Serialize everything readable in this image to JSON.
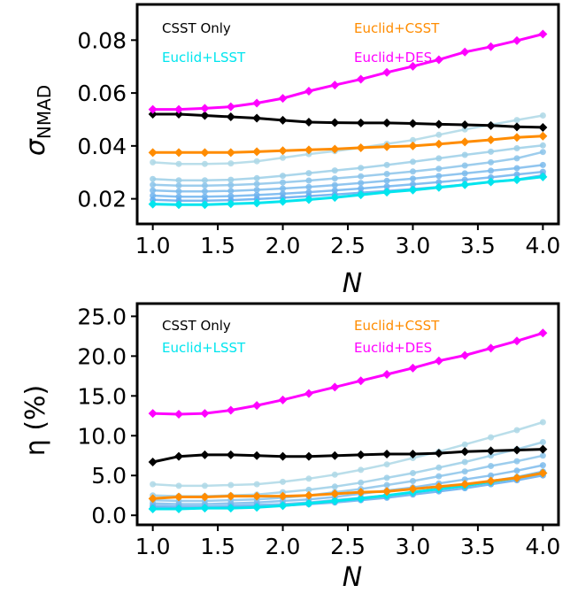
{
  "chart_data": [
    {
      "type": "line",
      "ylabel_symbol": "σ",
      "ylabel_sub": "NMAD",
      "xlabel": "N",
      "xlim": [
        0.88,
        4.12
      ],
      "ylim": [
        0.0105,
        0.0935
      ],
      "xticks": [
        "1.0",
        "1.5",
        "2.0",
        "2.5",
        "3.0",
        "3.5",
        "4.0"
      ],
      "xtick_values": [
        1.0,
        1.5,
        2.0,
        2.5,
        3.0,
        3.5,
        4.0
      ],
      "yticks": [
        "0.02",
        "0.04",
        "0.06",
        "0.08"
      ],
      "ytick_values": [
        0.02,
        0.04,
        0.06,
        0.08
      ],
      "legend_position": "top",
      "x": [
        1.0,
        1.2,
        1.4,
        1.6,
        1.8,
        2.0,
        2.2,
        2.4,
        2.6,
        2.8,
        3.0,
        3.2,
        3.4,
        3.6,
        3.8,
        4.0
      ],
      "series": [
        {
          "name": "CSST Only",
          "color": "#000000",
          "values": [
            0.052,
            0.052,
            0.0515,
            0.051,
            0.0505,
            0.0497,
            0.049,
            0.0488,
            0.0487,
            0.0487,
            0.0485,
            0.0482,
            0.048,
            0.0477,
            0.0472,
            0.047
          ]
        },
        {
          "name": "Euclid+CSST",
          "color": "#ff8c00",
          "values": [
            0.0375,
            0.0375,
            0.0375,
            0.0375,
            0.0378,
            0.0382,
            0.0385,
            0.0388,
            0.0393,
            0.0397,
            0.04,
            0.0407,
            0.0415,
            0.0423,
            0.0432,
            0.0437
          ]
        },
        {
          "name": "Euclid+LSST",
          "color": "#00e5ee",
          "values": [
            0.018,
            0.0178,
            0.0178,
            0.0181,
            0.0184,
            0.019,
            0.0197,
            0.0205,
            0.0215,
            0.0225,
            0.0233,
            0.0243,
            0.0253,
            0.0264,
            0.0272,
            0.0283
          ]
        },
        {
          "name": "Euclid+DES",
          "color": "#ff00ff",
          "values": [
            0.0538,
            0.0538,
            0.0542,
            0.0548,
            0.0562,
            0.058,
            0.0607,
            0.063,
            0.0652,
            0.0678,
            0.0701,
            0.0726,
            0.0755,
            0.0775,
            0.0798,
            0.0823
          ]
        }
      ],
      "faint_series": [
        {
          "color": "#aed8e6",
          "values": [
            0.0338,
            0.0332,
            0.0332,
            0.0334,
            0.0342,
            0.0355,
            0.0369,
            0.038,
            0.0393,
            0.0408,
            0.0422,
            0.0442,
            0.0462,
            0.048,
            0.0498,
            0.0515
          ]
        },
        {
          "color": "#9ccfe8",
          "values": [
            0.0275,
            0.027,
            0.027,
            0.0272,
            0.0278,
            0.0287,
            0.0297,
            0.0307,
            0.0317,
            0.0328,
            0.034,
            0.0353,
            0.0366,
            0.0378,
            0.0391,
            0.0402
          ]
        },
        {
          "color": "#8cc4ea",
          "values": [
            0.0253,
            0.025,
            0.025,
            0.0252,
            0.0256,
            0.0262,
            0.0269,
            0.0277,
            0.0285,
            0.0294,
            0.0303,
            0.0314,
            0.0326,
            0.0338,
            0.0353,
            0.0377
          ]
        },
        {
          "color": "#7dbbec",
          "values": [
            0.0232,
            0.0228,
            0.0228,
            0.023,
            0.0234,
            0.0239,
            0.0245,
            0.0252,
            0.026,
            0.0268,
            0.0276,
            0.0286,
            0.0296,
            0.0306,
            0.0316,
            0.0328
          ]
        },
        {
          "color": "#70b4ee",
          "values": [
            0.0212,
            0.0208,
            0.0208,
            0.021,
            0.0214,
            0.0219,
            0.0225,
            0.0232,
            0.0239,
            0.0247,
            0.0255,
            0.0263,
            0.0272,
            0.0281,
            0.0292,
            0.0302
          ]
        },
        {
          "color": "#62acf0",
          "values": [
            0.0196,
            0.0193,
            0.0193,
            0.0195,
            0.0199,
            0.0204,
            0.021,
            0.0216,
            0.0223,
            0.023,
            0.0237,
            0.0245,
            0.0254,
            0.0263,
            0.0273,
            0.0289
          ]
        }
      ]
    },
    {
      "type": "line",
      "ylabel": "η (%)",
      "xlabel": "N",
      "xlim": [
        0.88,
        4.12
      ],
      "ylim": [
        -1.2,
        26.6
      ],
      "xticks": [
        "1.0",
        "1.5",
        "2.0",
        "2.5",
        "3.0",
        "3.5",
        "4.0"
      ],
      "xtick_values": [
        1.0,
        1.5,
        2.0,
        2.5,
        3.0,
        3.5,
        4.0
      ],
      "yticks": [
        "0.0",
        "5.0",
        "10.0",
        "15.0",
        "20.0",
        "25.0"
      ],
      "ytick_values": [
        0.0,
        5.0,
        10.0,
        15.0,
        20.0,
        25.0
      ],
      "legend_position": "top",
      "x": [
        1.0,
        1.2,
        1.4,
        1.6,
        1.8,
        2.0,
        2.2,
        2.4,
        2.6,
        2.8,
        3.0,
        3.2,
        3.4,
        3.6,
        3.8,
        4.0
      ],
      "series": [
        {
          "name": "CSST Only",
          "color": "#000000",
          "values": [
            6.7,
            7.4,
            7.6,
            7.6,
            7.5,
            7.4,
            7.4,
            7.5,
            7.6,
            7.7,
            7.7,
            7.8,
            8.0,
            8.1,
            8.2,
            8.3
          ]
        },
        {
          "name": "Euclid+CSST",
          "color": "#ff8c00",
          "values": [
            2.1,
            2.3,
            2.3,
            2.4,
            2.4,
            2.4,
            2.5,
            2.7,
            2.9,
            3.0,
            3.3,
            3.6,
            3.9,
            4.3,
            4.7,
            5.3
          ]
        },
        {
          "name": "Euclid+LSST",
          "color": "#00e5ee",
          "values": [
            0.8,
            0.8,
            0.9,
            0.9,
            1.0,
            1.2,
            1.5,
            1.8,
            2.1,
            2.5,
            2.9,
            3.3,
            3.7,
            4.2,
            4.7,
            5.3
          ]
        },
        {
          "name": "Euclid+DES",
          "color": "#ff00ff",
          "values": [
            12.8,
            12.7,
            12.8,
            13.2,
            13.8,
            14.5,
            15.3,
            16.1,
            16.9,
            17.7,
            18.5,
            19.4,
            20.1,
            21.0,
            21.9,
            22.9
          ]
        }
      ],
      "faint_series": [
        {
          "color": "#aed8e6",
          "values": [
            3.9,
            3.7,
            3.7,
            3.8,
            3.9,
            4.2,
            4.6,
            5.1,
            5.7,
            6.4,
            7.2,
            8.0,
            8.9,
            9.8,
            10.7,
            11.7
          ]
        },
        {
          "color": "#9ccfe8",
          "values": [
            2.5,
            2.4,
            2.4,
            2.5,
            2.6,
            2.9,
            3.2,
            3.6,
            4.1,
            4.7,
            5.3,
            6.0,
            6.7,
            7.5,
            8.3,
            9.2
          ]
        },
        {
          "color": "#8cc4ea",
          "values": [
            1.9,
            1.8,
            1.8,
            1.9,
            2.0,
            2.2,
            2.5,
            2.9,
            3.3,
            3.8,
            4.3,
            4.9,
            5.5,
            6.2,
            6.8,
            7.5
          ]
        },
        {
          "color": "#7dbbec",
          "values": [
            1.5,
            1.4,
            1.4,
            1.5,
            1.6,
            1.8,
            2.0,
            2.3,
            2.7,
            3.1,
            3.5,
            4.0,
            4.5,
            5.0,
            5.6,
            6.3
          ]
        },
        {
          "color": "#70b4ee",
          "values": [
            1.2,
            1.1,
            1.1,
            1.2,
            1.3,
            1.4,
            1.6,
            1.9,
            2.2,
            2.5,
            2.9,
            3.3,
            3.8,
            4.3,
            4.8,
            5.5
          ]
        },
        {
          "color": "#62acf0",
          "values": [
            1.0,
            0.9,
            0.9,
            1.0,
            1.1,
            1.2,
            1.4,
            1.6,
            1.9,
            2.2,
            2.6,
            3.0,
            3.4,
            3.9,
            4.4,
            5.0
          ]
        }
      ]
    }
  ]
}
